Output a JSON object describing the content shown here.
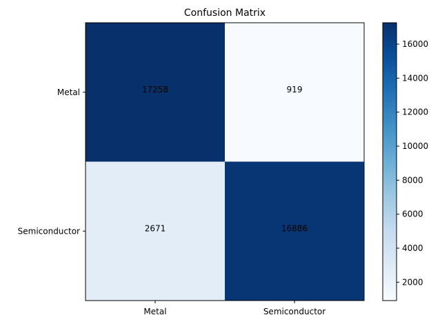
{
  "chart_data": {
    "type": "heatmap",
    "title": "Confusion Matrix",
    "x_categories": [
      "Metal",
      "Semiconductor"
    ],
    "y_categories": [
      "Metal",
      "Semiconductor"
    ],
    "values": [
      [
        17258,
        919
      ],
      [
        2671,
        16886
      ]
    ],
    "colormap": "Blues",
    "colorbar": {
      "min": 919,
      "max": 17258,
      "ticks": [
        2000,
        4000,
        6000,
        8000,
        10000,
        12000,
        14000,
        16000
      ]
    },
    "grid": false
  }
}
